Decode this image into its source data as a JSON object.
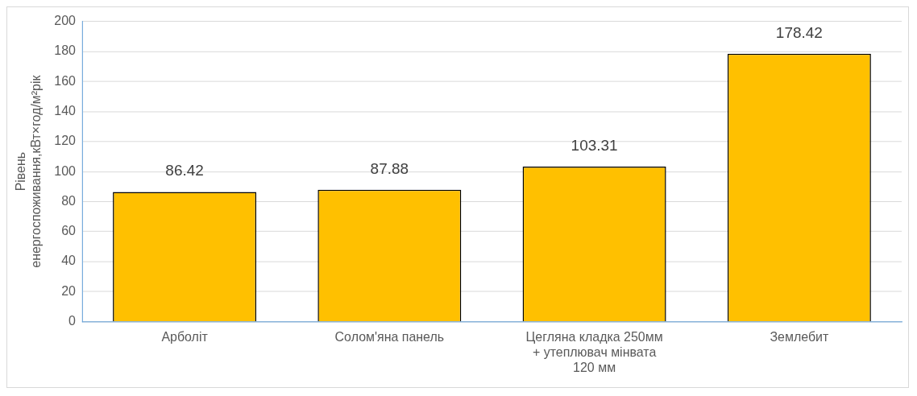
{
  "chart_data": {
    "type": "bar",
    "ylabel": "Рівень енергоспоживання,кВт×год/м²рік",
    "categories": [
      "Арболіт",
      "Солом'яна панель",
      "Цегляна кладка 250мм + утеплювач мінвата 120 мм",
      "Землебит"
    ],
    "values": [
      86.42,
      87.88,
      103.31,
      178.42
    ],
    "color": "#ffc000",
    "ylim": [
      0,
      200
    ],
    "yticks": [
      0,
      20,
      40,
      60,
      80,
      100,
      120,
      140,
      160,
      180,
      200
    ],
    "grid": "y",
    "data_labels": true
  }
}
